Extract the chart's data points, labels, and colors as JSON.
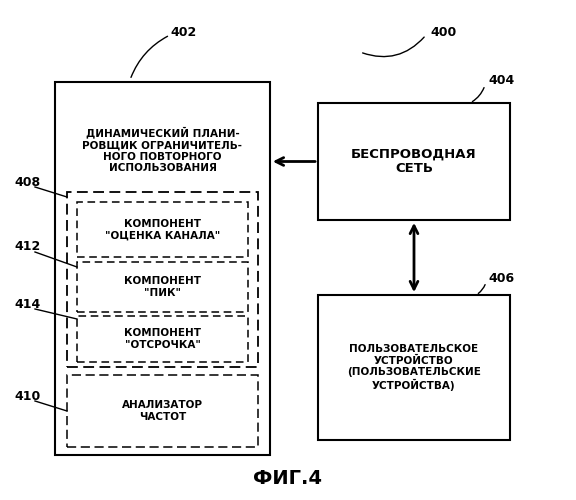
{
  "title": "ФИГ.4",
  "label_400": "400",
  "label_402": "402",
  "label_404": "404",
  "label_406": "406",
  "label_408": "408",
  "label_410": "410",
  "label_412": "412",
  "label_414": "414",
  "box_main_text": "ДИНАМИЧЕСКИЙ ПЛАНИ-\nРОВЩИК ОГРАНИЧИТЕЛЬ-\nНОГО ПОВТОРНОГО\nИСПОЛЬЗОВАНИЯ",
  "box_network_text": "БЕСПРОВОДНАЯ\nСЕТЬ",
  "box_user_text": "ПОЛЬЗОВАТЕЛЬСКОЕ\nУСТРОЙСТВО\n(ПОЛЬЗОВАТЕЛЬСКИЕ\nУСТРОЙСТВА)",
  "box_channel_text": "КОМПОНЕНТ\n\"ОЦЕНКА КАНАЛА\"",
  "box_peak_text": "КОМПОНЕНТ\n\"ПИК\"",
  "box_delay_text": "КОМПОНЕНТ\n\"ОТСРОЧКА\"",
  "box_analyzer_text": "АНАЛИЗАТОР\nЧАСТОТ",
  "bg_color": "#ffffff",
  "box_edge_color": "#000000",
  "text_color": "#000000",
  "font_size": 7.5,
  "network_font_size": 9.5,
  "title_font_size": 14,
  "label_font_size": 9
}
